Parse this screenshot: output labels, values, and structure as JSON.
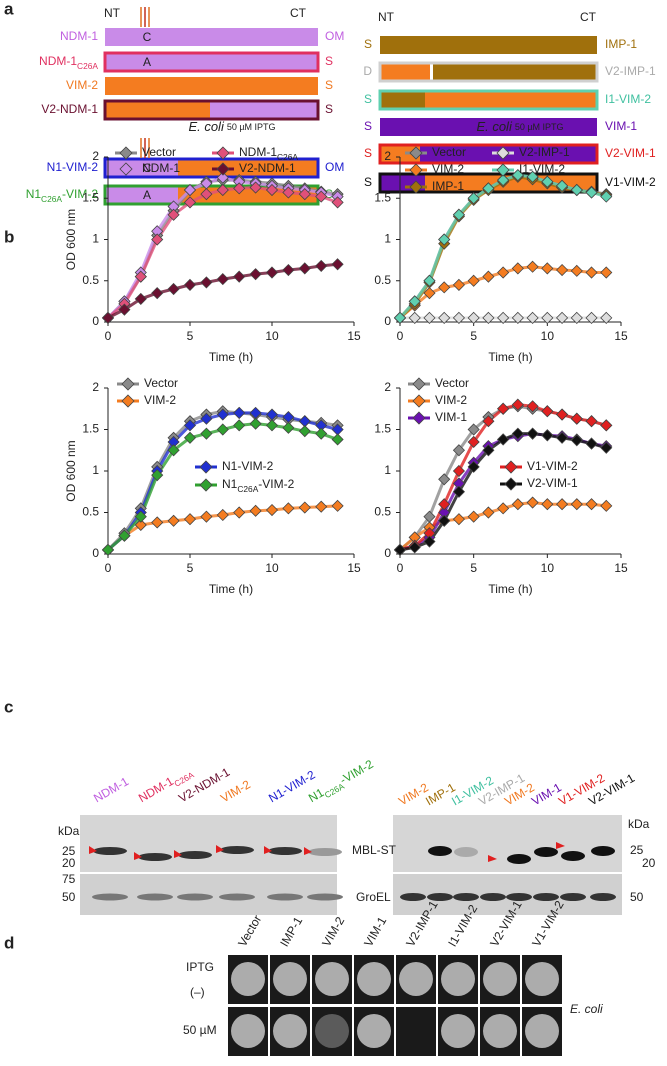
{
  "panel_labels": [
    "a",
    "b",
    "c",
    "d"
  ],
  "domains": {
    "nt": "NT",
    "ct": "CT",
    "left": [
      {
        "name": "NDM-1",
        "inner": "C",
        "loc": "OM"
      },
      {
        "name": [
          "NDM-1",
          "C26A"
        ],
        "inner": "A",
        "loc": "S"
      },
      {
        "name": "VIM-2",
        "loc": "S"
      },
      {
        "name": "V2-NDM-1",
        "loc": "S"
      },
      {
        "name": "N1-VIM-2",
        "inner": "C",
        "loc": "OM"
      },
      {
        "name": [
          "N1",
          "C26A",
          "-VIM-2"
        ],
        "inner": "A",
        "loc": "S"
      }
    ],
    "right": [
      {
        "loc": "S",
        "name": "IMP-1"
      },
      {
        "loc": "D",
        "name": "V2-IMP-1"
      },
      {
        "loc": "S",
        "name": "I1-VIM-2"
      },
      {
        "loc": "S",
        "name": "VIM-1"
      },
      {
        "loc": "S",
        "name": "V2-VIM-1"
      },
      {
        "loc": "S",
        "name": "V1-VIM-2"
      }
    ]
  },
  "chart_data": [
    {
      "type": "line",
      "title": "E. coli",
      "subtitle": "50 µM IPTG",
      "xlabel": "Time (h)",
      "ylabel": "OD 600 nm",
      "x": [
        0,
        1,
        2,
        3,
        4,
        5,
        6,
        7,
        8,
        9,
        10,
        11,
        12,
        13,
        14
      ],
      "xlim": [
        0,
        15
      ],
      "xticks": [
        0,
        5,
        10,
        15
      ],
      "ylim": [
        0,
        2
      ],
      "yticks": [
        0,
        0.5,
        1,
        1.5,
        2
      ],
      "series": [
        {
          "name": "Vector",
          "color": "#8a8a8a",
          "values": [
            0.05,
            0.25,
            0.55,
            1.05,
            1.35,
            1.6,
            1.7,
            1.72,
            1.72,
            1.7,
            1.68,
            1.65,
            1.62,
            1.58,
            1.55
          ]
        },
        {
          "name": "NDM-1",
          "color": "#c98be8",
          "values": [
            0.05,
            0.25,
            0.6,
            1.1,
            1.4,
            1.6,
            1.68,
            1.75,
            1.7,
            1.68,
            1.65,
            1.62,
            1.6,
            1.57,
            1.52
          ]
        },
        {
          "name": [
            "NDM-1",
            "C26A"
          ],
          "color": "#e0507a",
          "values": [
            0.05,
            0.22,
            0.55,
            1.0,
            1.3,
            1.45,
            1.55,
            1.6,
            1.62,
            1.63,
            1.6,
            1.57,
            1.55,
            1.52,
            1.45
          ]
        },
        {
          "name": "V2-NDM-1",
          "color": "#6a1030",
          "values": [
            0.05,
            0.15,
            0.28,
            0.35,
            0.4,
            0.45,
            0.48,
            0.52,
            0.55,
            0.58,
            0.6,
            0.63,
            0.65,
            0.68,
            0.7
          ]
        }
      ]
    },
    {
      "type": "line",
      "title": "E. coli",
      "subtitle": "50 µM IPTG",
      "xlabel": "Time (h)",
      "x": [
        0,
        1,
        2,
        3,
        4,
        5,
        6,
        7,
        8,
        9,
        10,
        11,
        12,
        13,
        14
      ],
      "xlim": [
        0,
        15
      ],
      "xticks": [
        0,
        5,
        10,
        15
      ],
      "ylim": [
        0,
        2
      ],
      "yticks": [
        0,
        0.5,
        1,
        1.5,
        2
      ],
      "series": [
        {
          "name": "Vector",
          "color": "#8a8a8a",
          "values": [
            0.05,
            0.25,
            0.5,
            1.0,
            1.3,
            1.5,
            1.62,
            1.72,
            1.78,
            1.75,
            1.7,
            1.65,
            1.6,
            1.58,
            1.55
          ]
        },
        {
          "name": "VIM-2",
          "color": "#f47c20",
          "values": [
            0.05,
            0.2,
            0.35,
            0.42,
            0.45,
            0.5,
            0.55,
            0.6,
            0.65,
            0.67,
            0.65,
            0.63,
            0.62,
            0.6,
            0.6
          ]
        },
        {
          "name": "IMP-1",
          "color": "#a0700c",
          "values": [
            0.05,
            0.22,
            0.48,
            0.95,
            1.28,
            1.48,
            1.6,
            1.7,
            1.76,
            1.73,
            1.68,
            1.63,
            1.6,
            1.57,
            1.54
          ]
        },
        {
          "name": "V2-IMP-1",
          "color": "#dddddd",
          "values": [
            0.05,
            0.05,
            0.05,
            0.05,
            0.05,
            0.05,
            0.05,
            0.05,
            0.05,
            0.05,
            0.05,
            0.05,
            0.05,
            0.05,
            0.05
          ]
        },
        {
          "name": "I1-VIM-2",
          "color": "#60d0b0",
          "values": [
            0.05,
            0.25,
            0.5,
            1.0,
            1.3,
            1.5,
            1.62,
            1.72,
            1.78,
            1.76,
            1.7,
            1.65,
            1.6,
            1.57,
            1.52
          ]
        }
      ]
    },
    {
      "type": "line",
      "xlabel": "Time (h)",
      "ylabel": "OD 600 nm",
      "x": [
        0,
        1,
        2,
        3,
        4,
        5,
        6,
        7,
        8,
        9,
        10,
        11,
        12,
        13,
        14
      ],
      "xlim": [
        0,
        15
      ],
      "xticks": [
        0,
        5,
        10,
        15
      ],
      "ylim": [
        0,
        2
      ],
      "yticks": [
        0,
        0.5,
        1,
        1.5,
        2
      ],
      "series": [
        {
          "name": "Vector",
          "color": "#8a8a8a",
          "values": [
            0.05,
            0.25,
            0.55,
            1.05,
            1.4,
            1.6,
            1.68,
            1.72,
            1.7,
            1.68,
            1.65,
            1.62,
            1.6,
            1.58,
            1.55
          ]
        },
        {
          "name": "VIM-2",
          "color": "#f47c20",
          "values": [
            0.05,
            0.22,
            0.35,
            0.38,
            0.4,
            0.42,
            0.45,
            0.47,
            0.5,
            0.52,
            0.53,
            0.55,
            0.56,
            0.57,
            0.58
          ]
        },
        {
          "name": "N1-VIM-2",
          "color": "#2030d0",
          "values": [
            0.05,
            0.22,
            0.5,
            1.0,
            1.35,
            1.55,
            1.63,
            1.68,
            1.7,
            1.7,
            1.68,
            1.65,
            1.6,
            1.55,
            1.5
          ]
        },
        {
          "name": [
            "N1",
            "C26A",
            "-VIM-2"
          ],
          "color": "#30a030",
          "values": [
            0.05,
            0.22,
            0.45,
            0.95,
            1.25,
            1.4,
            1.45,
            1.5,
            1.55,
            1.57,
            1.55,
            1.52,
            1.48,
            1.45,
            1.38
          ]
        }
      ]
    },
    {
      "type": "line",
      "xlabel": "Time (h)",
      "x": [
        0,
        1,
        2,
        3,
        4,
        5,
        6,
        7,
        8,
        9,
        10,
        11,
        12,
        13,
        14
      ],
      "xlim": [
        0,
        15
      ],
      "xticks": [
        0,
        5,
        10,
        15
      ],
      "ylim": [
        0,
        2
      ],
      "yticks": [
        0,
        0.5,
        1,
        1.5,
        2
      ],
      "series": [
        {
          "name": "Vector",
          "color": "#8a8a8a",
          "values": [
            0.05,
            0.2,
            0.45,
            0.9,
            1.25,
            1.5,
            1.65,
            1.75,
            1.78,
            1.75,
            1.72,
            1.68,
            1.63,
            1.6,
            1.55
          ]
        },
        {
          "name": "VIM-2",
          "color": "#f47c20",
          "values": [
            0.05,
            0.2,
            0.32,
            0.4,
            0.42,
            0.45,
            0.5,
            0.55,
            0.6,
            0.62,
            0.6,
            0.6,
            0.6,
            0.6,
            0.58
          ]
        },
        {
          "name": "VIM-1",
          "color": "#6a10b0",
          "values": [
            0.05,
            0.1,
            0.2,
            0.5,
            0.85,
            1.1,
            1.3,
            1.38,
            1.42,
            1.45,
            1.43,
            1.42,
            1.38,
            1.33,
            1.3
          ]
        },
        {
          "name": "V1-VIM-2",
          "color": "#e02020",
          "values": [
            0.05,
            0.1,
            0.25,
            0.6,
            1.0,
            1.35,
            1.6,
            1.75,
            1.8,
            1.78,
            1.72,
            1.68,
            1.63,
            1.6,
            1.55
          ]
        },
        {
          "name": "V2-VIM-1",
          "color": "#111111",
          "values": [
            0.05,
            0.08,
            0.15,
            0.4,
            0.75,
            1.05,
            1.25,
            1.38,
            1.45,
            1.45,
            1.43,
            1.4,
            1.37,
            1.33,
            1.28
          ]
        }
      ]
    }
  ],
  "gels": {
    "kda": "kDa",
    "mbl": "MBL-ST",
    "groel": "GroEL",
    "lanes_left": [
      "NDM-1",
      [
        "NDM-1",
        "C26A"
      ],
      "V2-NDM-1",
      "VIM-2",
      "N1-VIM-2",
      [
        "N1",
        "C26A",
        "-VIM-2"
      ]
    ],
    "lanes_right": [
      "VIM-2",
      "IMP-1",
      "I1-VIM-2",
      "V2-IMP-1",
      "VIM-2",
      "VIM-1",
      "V1-VIM-2",
      "V2-VIM-1"
    ],
    "left_markers": [
      25,
      20,
      75,
      50
    ],
    "right_markers": [
      25,
      20,
      50
    ]
  },
  "colonies": {
    "strains": [
      "Vector",
      "IMP-1",
      "VIM-2",
      "VIM-1",
      "V2-IMP-1",
      "I1-VIM-2",
      "V2-VIM-1",
      "V1-VIM-2"
    ],
    "iptg": "IPTG",
    "rows": [
      "(–)",
      "50 µM"
    ],
    "organism": "E. coli"
  }
}
